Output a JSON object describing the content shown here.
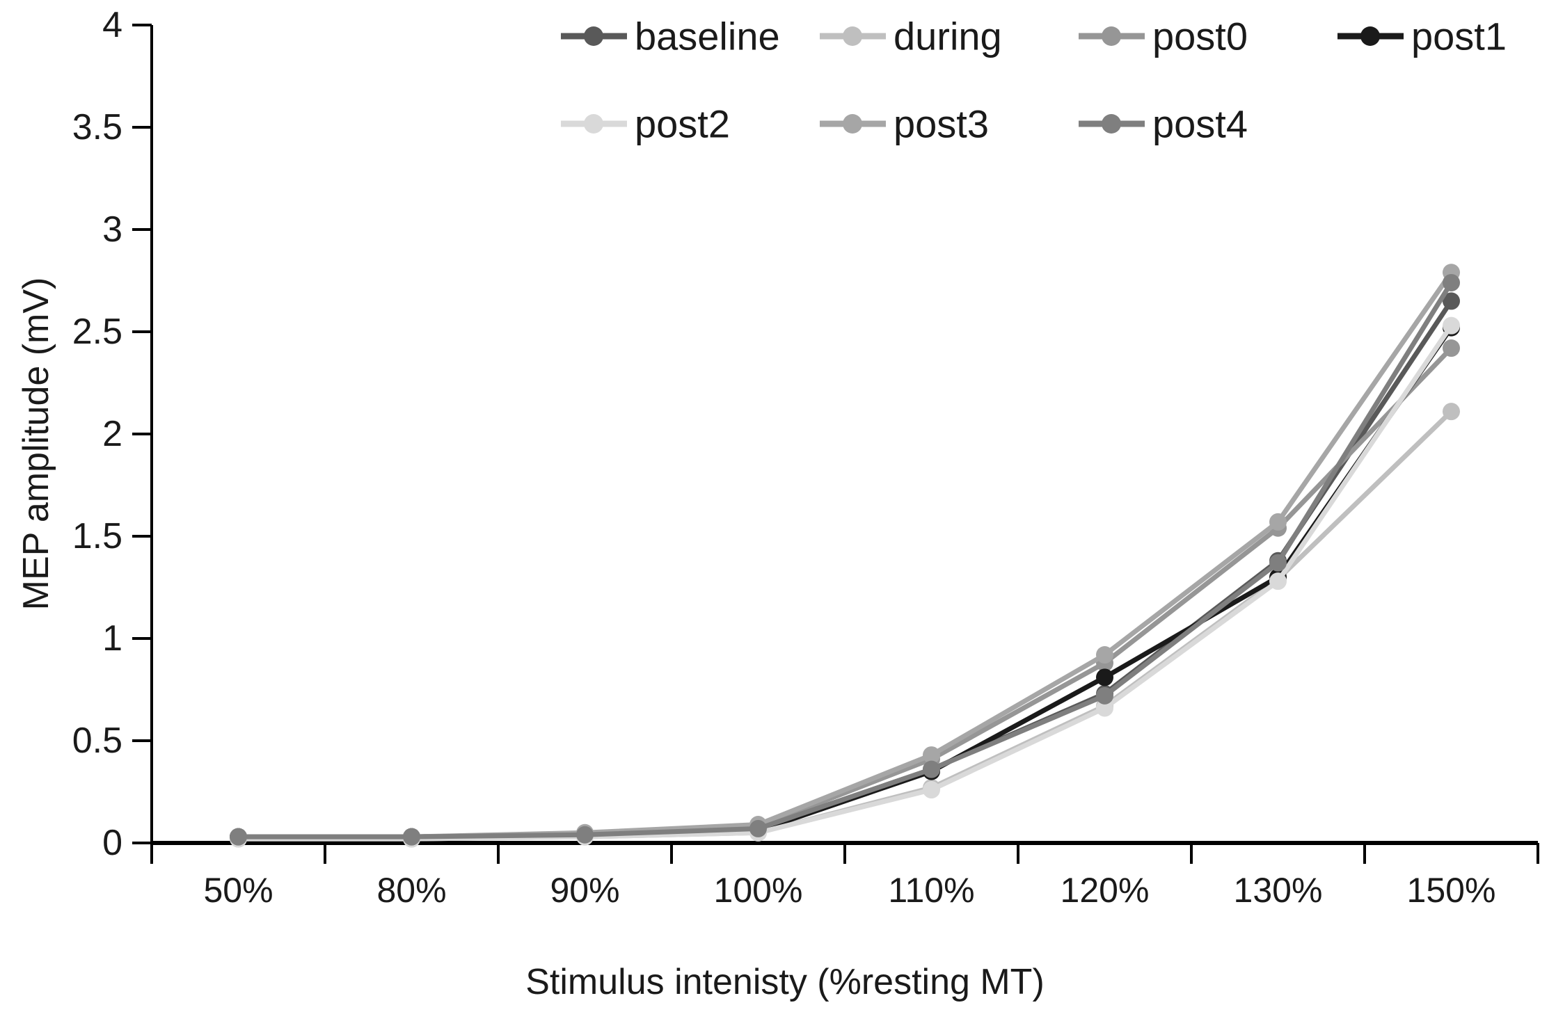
{
  "figure": {
    "background": "#ffffff",
    "text_color": "#1a1a1a",
    "axis_color": "#000000"
  },
  "chart_data": {
    "type": "line",
    "title": "",
    "xlabel": "Stimulus intenisty (%resting MT)",
    "ylabel": "MEP amplitude (mV)",
    "categories": [
      "50%",
      "80%",
      "90%",
      "100%",
      "110%",
      "120%",
      "130%",
      "150%"
    ],
    "ylim": [
      0,
      4
    ],
    "y_tick_step": 0.5,
    "y_tick_labels": [
      "0",
      "0.5",
      "1",
      "1.5",
      "2",
      "2.5",
      "3",
      "3.5",
      "4"
    ],
    "grid": false,
    "legend_position": "top",
    "legend_rows": [
      [
        "baseline",
        "during",
        "post0",
        "post1"
      ],
      [
        "post2",
        "post3",
        "post4"
      ]
    ],
    "series": [
      {
        "name": "baseline",
        "color": "#595959",
        "values": [
          0.03,
          0.03,
          0.04,
          0.07,
          0.36,
          0.73,
          1.38,
          2.65
        ]
      },
      {
        "name": "during",
        "color": "#bfbfbf",
        "values": [
          0.02,
          0.02,
          0.03,
          0.05,
          0.27,
          0.67,
          1.29,
          2.11
        ]
      },
      {
        "name": "post0",
        "color": "#969696",
        "values": [
          0.03,
          0.03,
          0.04,
          0.08,
          0.41,
          0.88,
          1.54,
          2.42
        ]
      },
      {
        "name": "post1",
        "color": "#1a1a1a",
        "values": [
          0.03,
          0.03,
          0.04,
          0.06,
          0.35,
          0.81,
          1.3,
          2.52
        ]
      },
      {
        "name": "post2",
        "color": "#d9d9d9",
        "values": [
          0.02,
          0.02,
          0.03,
          0.05,
          0.26,
          0.66,
          1.28,
          2.53
        ]
      },
      {
        "name": "post3",
        "color": "#a6a6a6",
        "values": [
          0.03,
          0.03,
          0.05,
          0.09,
          0.43,
          0.92,
          1.57,
          2.79
        ]
      },
      {
        "name": "post4",
        "color": "#7f7f7f",
        "values": [
          0.03,
          0.03,
          0.04,
          0.07,
          0.36,
          0.72,
          1.37,
          2.74
        ]
      }
    ]
  }
}
